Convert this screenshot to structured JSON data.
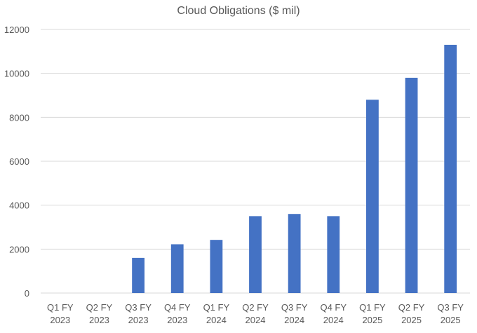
{
  "chart_data": {
    "type": "bar",
    "title": "Cloud Obligations ($ mil)",
    "xlabel": "",
    "ylabel": "",
    "categories": [
      [
        "Q1 FY",
        "2023"
      ],
      [
        "Q2 FY",
        "2023"
      ],
      [
        "Q3 FY",
        "2023"
      ],
      [
        "Q4 FY",
        "2023"
      ],
      [
        "Q1 FY",
        "2024"
      ],
      [
        "Q2 FY",
        "2024"
      ],
      [
        "Q3 FY",
        "2024"
      ],
      [
        "Q4 FY",
        "2024"
      ],
      [
        "Q1 FY",
        "2025"
      ],
      [
        "Q2 FY",
        "2025"
      ],
      [
        "Q3 FY",
        "2025"
      ]
    ],
    "values": [
      0,
      0,
      1600,
      2220,
      2420,
      3500,
      3600,
      3500,
      8800,
      9800,
      11300
    ],
    "ylim": [
      0,
      12000
    ],
    "yticks": [
      "0",
      "2000",
      "4000",
      "6000",
      "8000",
      "10000",
      "12000"
    ],
    "grid": true,
    "legend": "none",
    "bar_color": "#4472c4"
  }
}
